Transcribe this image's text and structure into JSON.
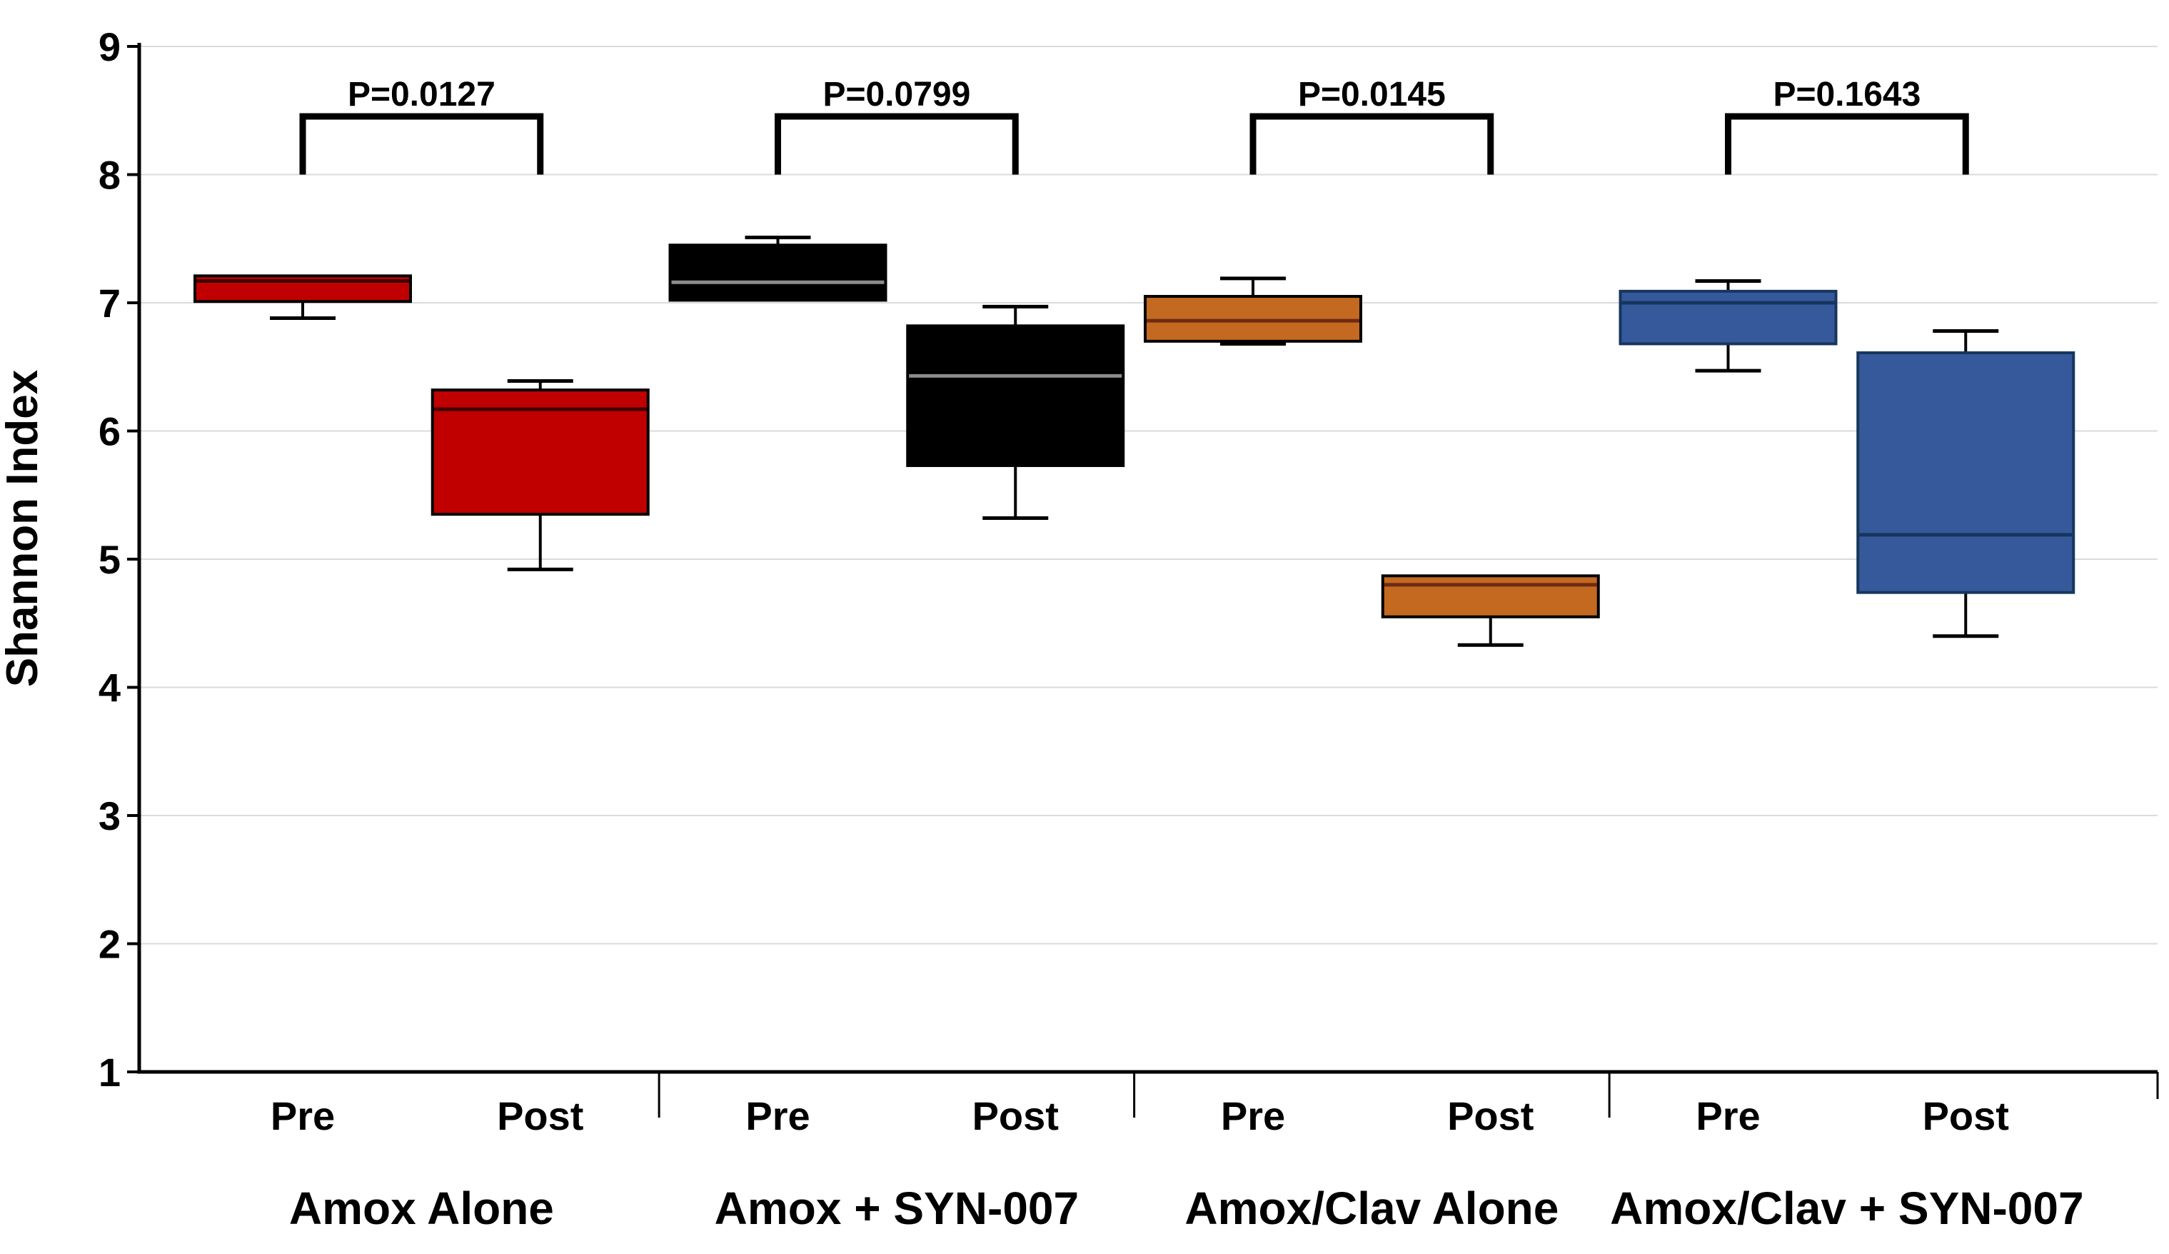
{
  "chart_data": {
    "type": "boxplot",
    "title": "",
    "ylabel": "Shannon Index",
    "xlabel": "",
    "ylim": [
      1,
      9
    ],
    "yticks": [
      1,
      2,
      3,
      4,
      5,
      6,
      7,
      8,
      9
    ],
    "grid": true,
    "grid_color": "#DBDBDB",
    "categories": [
      "Pre",
      "Post"
    ],
    "bracket_color": "#000000",
    "groups": [
      {
        "label": "Amox Alone",
        "p_label": "P=0.0127",
        "color": "#C00000",
        "border": "#000000",
        "median_color": "#3E0000",
        "pre": {
          "low": 6.88,
          "q1": 7.01,
          "median": 7.17,
          "q3": 7.21,
          "high": 7.21
        },
        "post": {
          "low": 4.92,
          "q1": 5.35,
          "median": 6.17,
          "q3": 6.32,
          "high": 6.39
        }
      },
      {
        "label": "Amox + SYN-007",
        "p_label": "P=0.0799",
        "color": "#000000",
        "border": "#000000",
        "median_color": "#8C8C8C",
        "pre": {
          "low": 7.02,
          "q1": 7.02,
          "median": 7.16,
          "q3": 7.45,
          "high": 7.51
        },
        "post": {
          "low": 5.32,
          "q1": 5.73,
          "median": 6.43,
          "q3": 6.82,
          "high": 6.97
        }
      },
      {
        "label": "Amox/Clav Alone",
        "p_label": "P=0.0145",
        "color": "#C36920",
        "border": "#000000",
        "median_color": "#6E2A12",
        "pre": {
          "low": 6.68,
          "q1": 6.7,
          "median": 6.86,
          "q3": 7.05,
          "high": 7.19
        },
        "post": {
          "low": 4.33,
          "q1": 4.55,
          "median": 4.8,
          "q3": 4.87,
          "high": 4.89
        }
      },
      {
        "label": "Amox/Clav + SYN-007",
        "p_label": "P=0.1643",
        "color": "#35599B",
        "border": "#17365D",
        "median_color": "#17365D",
        "pre": {
          "low": 6.47,
          "q1": 6.68,
          "median": 7.0,
          "q3": 7.09,
          "high": 7.17
        },
        "post": {
          "low": 4.4,
          "q1": 4.74,
          "median": 5.19,
          "q3": 6.61,
          "high": 6.78
        }
      }
    ]
  }
}
